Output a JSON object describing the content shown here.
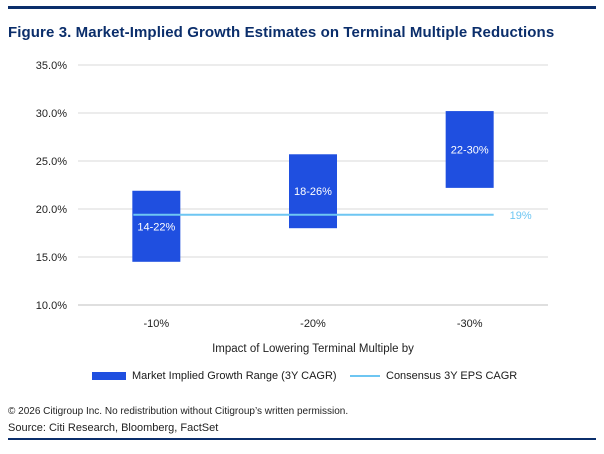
{
  "figure": {
    "title": "Figure 3. Market-Implied Growth Estimates on Terminal Multiple Reductions",
    "copyright": "© 2026 Citigroup Inc. No redistribution without Citigroup’s written permission.",
    "source": "Source: Citi Research, Bloomberg, FactSet"
  },
  "colors": {
    "bar": "#1f4fe0",
    "line": "#6ec6f2",
    "title": "#0b2e6b",
    "grid": "#d9d9d9"
  },
  "chart_data": {
    "type": "bar",
    "subtype": "floating-range-with-reference-line",
    "title": "Figure 3. Market-Implied Growth Estimates on Terminal Multiple Reductions",
    "xlabel": "Impact of Lowering Terminal Multiple by",
    "ylabel": "",
    "categories": [
      "-10%",
      "-20%",
      "-30%"
    ],
    "ylim": [
      10,
      35
    ],
    "yticks": [
      10,
      15,
      20,
      25,
      30,
      35
    ],
    "ytick_labels": [
      "10.0%",
      "15.0%",
      "20.0%",
      "25.0%",
      "30.0%",
      "35.0%"
    ],
    "grid": true,
    "series": [
      {
        "name": "Market Implied Growth Range (3Y CAGR)",
        "kind": "range-bar",
        "low": [
          14.5,
          18.0,
          22.2
        ],
        "high": [
          21.9,
          25.7,
          30.2
        ],
        "labels": [
          "14-22%",
          "18-26%",
          "22-30%"
        ]
      },
      {
        "name": "Consensus 3Y EPS CAGR",
        "kind": "line",
        "value": 19.4,
        "label": "19%"
      }
    ],
    "legend_position": "bottom"
  }
}
